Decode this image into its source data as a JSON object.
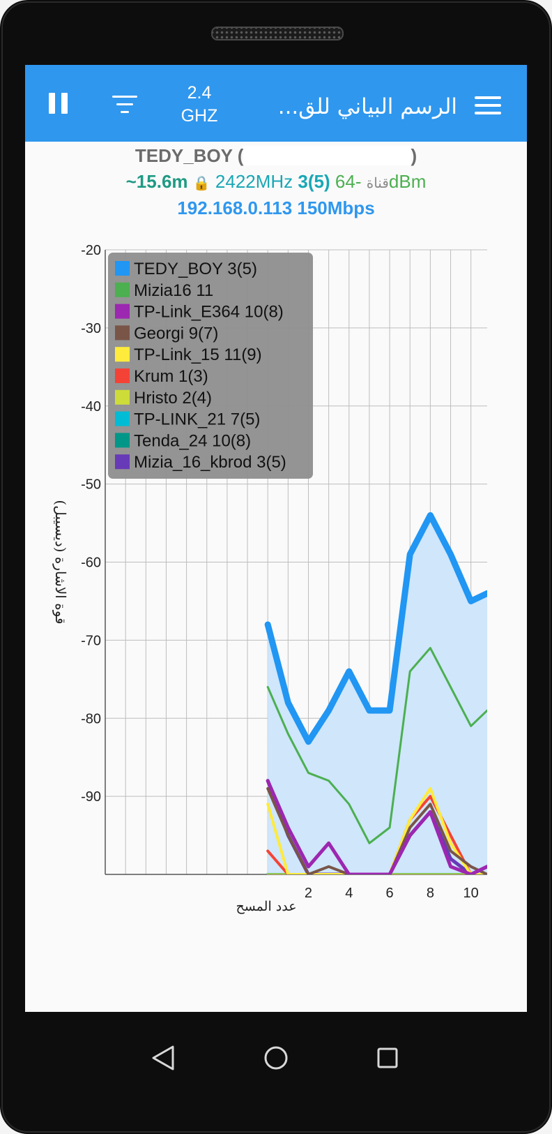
{
  "appbar": {
    "band_line1": "2.4",
    "band_line2": "GHZ",
    "title": "الرسم البياني للق...",
    "icons": {
      "pause": "pause-icon",
      "filter": "filter-icon",
      "menu": "hamburger-menu-icon"
    }
  },
  "connection": {
    "ssid": "TEDY_BOY",
    "paren_open": "(",
    "paren_close": ")",
    "distance": "~15.6m",
    "lock_icon": "lock-icon",
    "frequency": "2422MHz",
    "channel": "3(5)",
    "channel_label": "قناة",
    "signal": "-64dBm",
    "ip_speed": "192.168.0.113 150Mbps"
  },
  "colors": {
    "appbar": "#2f97ee",
    "fill": "#cfe6fb"
  },
  "chart_data": {
    "type": "line",
    "ylabel": "قوة الاشارة (ديسيبل)",
    "xlabel": "عدد المسح",
    "ylim": [
      -100,
      -20
    ],
    "yticks": [
      -20,
      -30,
      -40,
      -50,
      -60,
      -70,
      -80,
      -90
    ],
    "xticks": [
      2,
      4,
      6,
      8,
      10
    ],
    "xlim": [
      -8,
      10.8
    ],
    "legend_position": "top-left",
    "grid": true,
    "series": [
      {
        "name": "TEDY_BOY 3(5)",
        "color": "#2196f3",
        "width": 9,
        "fill": true,
        "x": [
          0,
          1,
          2,
          3,
          4,
          5,
          6,
          7,
          8,
          9,
          10,
          10.8
        ],
        "y": [
          -68,
          -78,
          -83,
          -79,
          -74,
          -79,
          -79,
          -59,
          -54,
          -59,
          -65,
          -64
        ]
      },
      {
        "name": "Mizia16 11",
        "color": "#4caf50",
        "width": 3,
        "x": [
          0,
          1,
          2,
          3,
          4,
          5,
          6,
          7,
          8,
          9,
          10,
          10.8
        ],
        "y": [
          -76,
          -82,
          -87,
          -88,
          -91,
          -96,
          -94,
          -74,
          -71,
          -76,
          -81,
          -79
        ]
      },
      {
        "name": "TP-Link_E364 10(8)",
        "color": "#9c27b0",
        "width": 5,
        "x": [
          0,
          1,
          2,
          3,
          4,
          5,
          6,
          7,
          8,
          9,
          10,
          10.8
        ],
        "y": [
          -88,
          -94,
          -99,
          -96,
          -100,
          -100,
          -100,
          -95,
          -92,
          -99,
          -100,
          -99
        ]
      },
      {
        "name": "Georgi 9(7)",
        "color": "#795548",
        "width": 4,
        "x": [
          0,
          1,
          2,
          3,
          4,
          5,
          6,
          7,
          8,
          9,
          10,
          10.8
        ],
        "y": [
          -89,
          -95,
          -100,
          -99,
          -100,
          -100,
          -100,
          -94,
          -91,
          -97,
          -99,
          -100
        ]
      },
      {
        "name": "TP-Link_15 11(9)",
        "color": "#ffeb3b",
        "width": 4,
        "x": [
          0,
          1,
          2,
          3,
          4,
          5,
          6,
          7,
          8,
          9,
          10,
          10.8
        ],
        "y": [
          -91,
          -100,
          -100,
          -100,
          -100,
          -100,
          -100,
          -93,
          -89,
          -96,
          -100,
          -100
        ]
      },
      {
        "name": "Krum 1(3)",
        "color": "#f44336",
        "width": 4,
        "x": [
          0,
          1,
          2,
          3,
          4,
          5,
          6,
          7,
          8,
          9,
          10,
          10.8
        ],
        "y": [
          -97,
          -100,
          -100,
          -100,
          -100,
          -100,
          -100,
          -93,
          -90,
          -95,
          -100,
          -100
        ]
      },
      {
        "name": "Hristo 2(4)",
        "color": "#cddc39",
        "width": 3,
        "x": [
          0,
          1,
          2,
          3,
          4,
          5,
          6,
          7,
          8,
          9,
          10,
          10.8
        ],
        "y": [
          -100,
          -100,
          -100,
          -100,
          -100,
          -100,
          -100,
          -100,
          -100,
          -100,
          -100,
          -100
        ]
      },
      {
        "name": "TP-LINK_21 7(5)",
        "color": "#00bcd4",
        "width": 3,
        "x": [
          0,
          1,
          2,
          3,
          4,
          5,
          6,
          7,
          8,
          9,
          10,
          10.8
        ],
        "y": [
          -100,
          -100,
          -100,
          -100,
          -100,
          -100,
          -100,
          -100,
          -100,
          -100,
          -100,
          -100
        ]
      },
      {
        "name": "Tenda_24 10(8)",
        "color": "#009688",
        "width": 4,
        "x": [
          0,
          1,
          2,
          3,
          4,
          5,
          6,
          7,
          8,
          9,
          10,
          10.8
        ],
        "y": [
          -100,
          -100,
          -100,
          -100,
          -100,
          -100,
          -100,
          -100,
          -100,
          -100,
          -100,
          -100
        ]
      },
      {
        "name": "Mizia_16_kbrod 3(5)",
        "color": "#673ab7",
        "width": 5,
        "x": [
          0,
          1,
          2,
          3,
          4,
          5,
          6,
          7,
          8,
          9,
          10,
          10.8
        ],
        "y": [
          -88,
          -95,
          -100,
          -100,
          -100,
          -100,
          -100,
          -95,
          -92,
          -98,
          -100,
          -99
        ]
      }
    ]
  },
  "navbar": {
    "back": "back-triangle-icon",
    "home": "home-circle-icon",
    "recents": "recents-square-icon"
  }
}
